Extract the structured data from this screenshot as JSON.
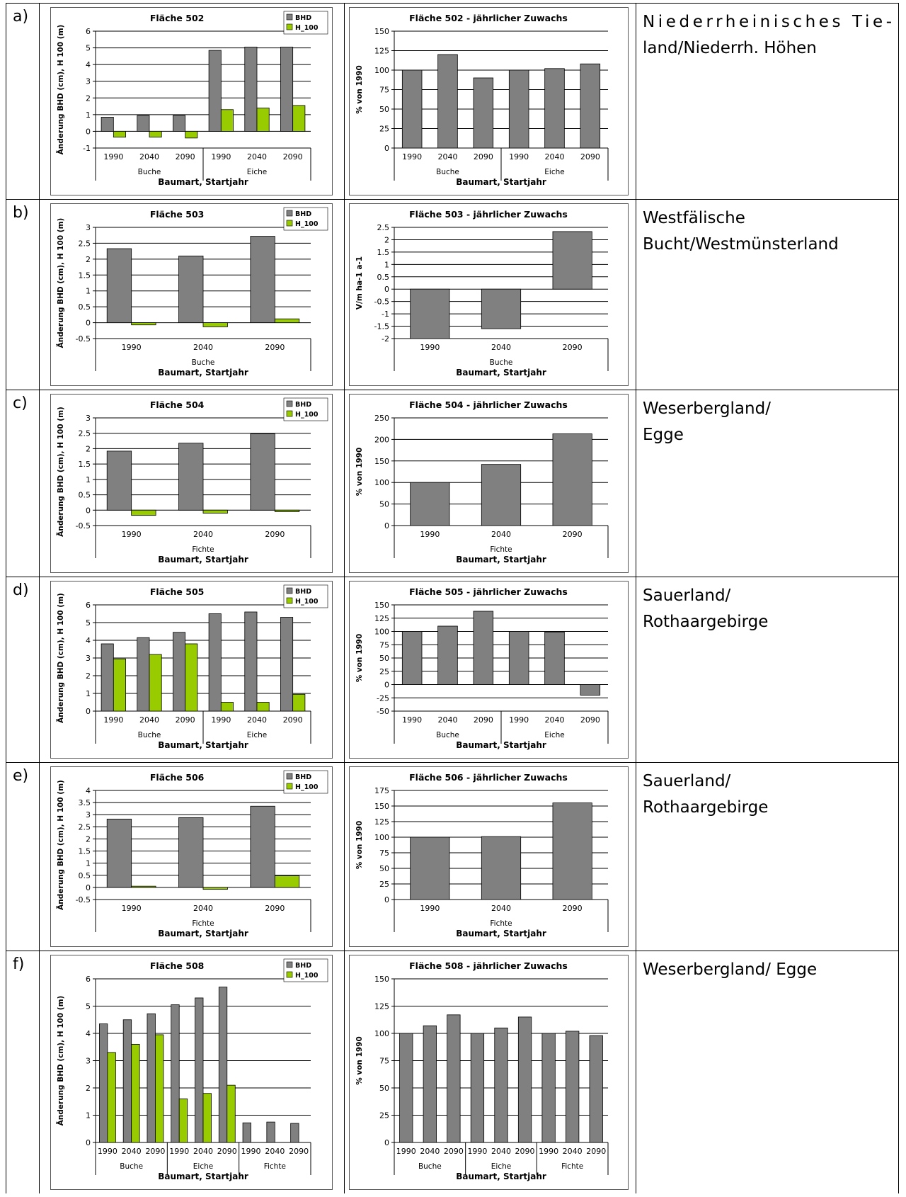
{
  "rows": [
    {
      "label": "a)",
      "region": "Niederrheinisches Tie-land/Niederrh. Höhen",
      "region_lines": [
        "Niederrheinisches Tie-",
        "land/Niederrh. Höhen"
      ]
    },
    {
      "label": "b)",
      "region": "Westfälische Bucht/Westmünsterland",
      "region_lines": [
        "Westfälische",
        "Bucht/Westmünsterland"
      ]
    },
    {
      "label": "c)",
      "region": "Weserbergland/ Egge",
      "region_lines": [
        "Weserbergland/",
        "Egge"
      ]
    },
    {
      "label": "d)",
      "region": "Sauerland/ Rothaargebirge",
      "region_lines": [
        "Sauerland/",
        "Rothaargebirge"
      ]
    },
    {
      "label": "e)",
      "region": "Sauerland/ Rothaargebirge",
      "region_lines": [
        "Sauerland/",
        "Rothaargebirge"
      ]
    },
    {
      "label": "f)",
      "region": "Weserbergland/ Egge",
      "region_lines": [
        "Weserbergland/ Egge"
      ]
    }
  ],
  "colors": {
    "bhd": "#808080",
    "h100": "#99cc00",
    "grid": "#000000",
    "frame": "#555555"
  },
  "chart_data": [
    {
      "type": "bar",
      "title": "Fläche 502",
      "ylabel": "Änderung BHD (cm), H 100 (m)",
      "xlabel": "Baumart, Startjahr",
      "ylim": [
        -1,
        6
      ],
      "yticks": [
        "6",
        "5",
        "4",
        "3",
        "2",
        "1",
        "0",
        "-1"
      ],
      "legend": [
        "BHD",
        "H_100"
      ],
      "legend_position": "top-right",
      "categories": [
        "1990",
        "2040",
        "2090",
        "1990",
        "2040",
        "2090"
      ],
      "groups": [
        {
          "name": "Buche",
          "count": 3
        },
        {
          "name": "Eiche",
          "count": 3
        }
      ],
      "series": [
        {
          "name": "BHD",
          "values": [
            0.85,
            0.95,
            0.95,
            4.85,
            5.05,
            5.05
          ]
        },
        {
          "name": "H_100",
          "values": [
            -0.35,
            -0.35,
            -0.4,
            1.3,
            1.4,
            1.55
          ]
        }
      ]
    },
    {
      "type": "bar",
      "title": "Fläche 502 - jährlicher Zuwachs",
      "ylabel": "% von 1990",
      "xlabel": "Baumart, Startjahr",
      "ylim": [
        0,
        150
      ],
      "yticks": [
        "150",
        "125",
        "100",
        "75",
        "50",
        "25",
        "0"
      ],
      "categories": [
        "1990",
        "2040",
        "2090",
        "1990",
        "2040",
        "2090"
      ],
      "groups": [
        {
          "name": "Buche",
          "count": 3
        },
        {
          "name": "Eiche",
          "count": 3
        }
      ],
      "series": [
        {
          "values": [
            100,
            120,
            90,
            100,
            102,
            108
          ]
        }
      ]
    },
    {
      "type": "bar",
      "title": "Fläche 503",
      "ylabel": "Änderung BHD (cm), H 100 (m)",
      "xlabel": "Baumart, Startjahr",
      "ylim": [
        -0.5,
        3
      ],
      "yticks": [
        "3",
        "2.5",
        "2",
        "1.5",
        "1",
        "0.5",
        "0",
        "-0.5"
      ],
      "legend": [
        "BHD",
        "H_100"
      ],
      "legend_position": "top-right",
      "categories": [
        "1990",
        "2040",
        "2090"
      ],
      "groups": [
        {
          "name": "Buche",
          "count": 3
        }
      ],
      "series": [
        {
          "name": "BHD",
          "values": [
            2.33,
            2.1,
            2.72
          ]
        },
        {
          "name": "H_100",
          "values": [
            -0.07,
            -0.13,
            0.12
          ]
        }
      ]
    },
    {
      "type": "bar",
      "title": "Fläche 503 - jährlicher Zuwachs",
      "ylabel": "V/m ha-1 a-1",
      "xlabel": "Baumart, Startjahr",
      "ylim": [
        -2,
        2.5
      ],
      "yticks": [
        "2.5",
        "2",
        "1.5",
        "1",
        "0.5",
        "0",
        "-0.5",
        "-1",
        "-1.5",
        "-2"
      ],
      "categories": [
        "1990",
        "2040",
        "2090"
      ],
      "groups": [
        {
          "name": "Buche",
          "count": 3
        }
      ],
      "series": [
        {
          "values": [
            -2.0,
            -1.6,
            2.33
          ]
        }
      ]
    },
    {
      "type": "bar",
      "title": "Fläche 504",
      "ylabel": "Änderung BHD (cm), H 100 (m)",
      "xlabel": "Baumart, Startjahr",
      "ylim": [
        -0.5,
        3
      ],
      "yticks": [
        "3",
        "2.5",
        "2",
        "1.5",
        "1",
        "0.5",
        "0",
        "-0.5"
      ],
      "legend": [
        "BHD",
        "H_100"
      ],
      "legend_position": "top-right",
      "categories": [
        "1990",
        "2040",
        "2090"
      ],
      "groups": [
        {
          "name": "Fichte",
          "count": 3
        }
      ],
      "series": [
        {
          "name": "BHD",
          "values": [
            1.92,
            2.18,
            2.48
          ]
        },
        {
          "name": "H_100",
          "values": [
            -0.17,
            -0.1,
            -0.05
          ]
        }
      ]
    },
    {
      "type": "bar",
      "title": "Fläche 504 - jährlicher Zuwachs",
      "ylabel": "% von 1990",
      "xlabel": "Baumart, Startjahr",
      "ylim": [
        0,
        250
      ],
      "yticks": [
        "250",
        "200",
        "150",
        "100",
        "50",
        "0"
      ],
      "categories": [
        "1990",
        "2040",
        "2090"
      ],
      "groups": [
        {
          "name": "Fichte",
          "count": 3
        }
      ],
      "series": [
        {
          "values": [
            100,
            142,
            213
          ]
        }
      ]
    },
    {
      "type": "bar",
      "title": "Fläche 505",
      "ylabel": "Änderung BHD (cm), H 100 (m)",
      "xlabel": "Baumart, Startjahr",
      "ylim": [
        0,
        6
      ],
      "yticks": [
        "6",
        "5",
        "4",
        "3",
        "2",
        "1",
        "0"
      ],
      "legend": [
        "BHD",
        "H_100"
      ],
      "legend_position": "top-right",
      "categories": [
        "1990",
        "2040",
        "2090",
        "1990",
        "2040",
        "2090"
      ],
      "groups": [
        {
          "name": "Buche",
          "count": 3
        },
        {
          "name": "Eiche",
          "count": 3
        }
      ],
      "series": [
        {
          "name": "BHD",
          "values": [
            3.8,
            4.15,
            4.45,
            5.5,
            5.6,
            5.3
          ]
        },
        {
          "name": "H_100",
          "values": [
            2.95,
            3.2,
            3.8,
            0.5,
            0.5,
            0.95
          ]
        }
      ]
    },
    {
      "type": "bar",
      "title": "Fläche 505 - jährlicher Zuwachs",
      "ylabel": "% von 1990",
      "xlabel": "Baumart, Startjahr",
      "ylim": [
        -50,
        150
      ],
      "yticks": [
        "150",
        "125",
        "100",
        "75",
        "50",
        "25",
        "0",
        "-25",
        "-50"
      ],
      "categories": [
        "1990",
        "2040",
        "2090",
        "1990",
        "2040",
        "2090"
      ],
      "groups": [
        {
          "name": "Buche",
          "count": 3
        },
        {
          "name": "Eiche",
          "count": 3
        }
      ],
      "series": [
        {
          "values": [
            100,
            110,
            138,
            100,
            99,
            -20
          ]
        }
      ]
    },
    {
      "type": "bar",
      "title": "Fläche 506",
      "ylabel": "Änderung BHD (cm), H 100 (m)",
      "xlabel": "Baumart, Startjahr",
      "ylim": [
        -0.5,
        4
      ],
      "yticks": [
        "4",
        "3.5",
        "3",
        "2.5",
        "2",
        "1.5",
        "1",
        "0.5",
        "0",
        "-0.5"
      ],
      "legend": [
        "BHD",
        "H_100"
      ],
      "legend_position": "top-right",
      "categories": [
        "1990",
        "2040",
        "2090"
      ],
      "groups": [
        {
          "name": "Fichte",
          "count": 3
        }
      ],
      "series": [
        {
          "name": "BHD",
          "values": [
            2.82,
            2.88,
            3.35
          ]
        },
        {
          "name": "H_100",
          "values": [
            0.05,
            -0.08,
            0.48
          ]
        }
      ]
    },
    {
      "type": "bar",
      "title": "Fläche 506 - jährlicher Zuwachs",
      "ylabel": "% von 1990",
      "xlabel": "Baumart, Startjahr",
      "ylim": [
        0,
        175
      ],
      "yticks": [
        "175",
        "150",
        "125",
        "100",
        "75",
        "50",
        "25",
        "0"
      ],
      "categories": [
        "1990",
        "2040",
        "2090"
      ],
      "groups": [
        {
          "name": "Fichte",
          "count": 3
        }
      ],
      "series": [
        {
          "values": [
            100,
            101,
            155
          ]
        }
      ]
    },
    {
      "type": "bar",
      "title": "Fläche 508",
      "ylabel": "Änderung BHD (cm), H 100 (m)",
      "xlabel": "Baumart, Startjahr",
      "ylim": [
        0,
        6
      ],
      "yticks": [
        "6",
        "5",
        "4",
        "3",
        "2",
        "1",
        "0"
      ],
      "legend": [
        "BHD",
        "H_100"
      ],
      "legend_position": "top-right",
      "categories": [
        "1990",
        "2040",
        "2090",
        "1990",
        "2040",
        "2090",
        "1990",
        "2040",
        "2090"
      ],
      "groups": [
        {
          "name": "Buche",
          "count": 3
        },
        {
          "name": "Eiche",
          "count": 3
        },
        {
          "name": "Fichte",
          "count": 3
        }
      ],
      "series": [
        {
          "name": "BHD",
          "values": [
            4.35,
            4.5,
            4.72,
            5.05,
            5.3,
            5.7,
            0.72,
            0.75,
            0.7
          ]
        },
        {
          "name": "H_100",
          "values": [
            3.3,
            3.6,
            3.95,
            1.6,
            1.8,
            2.1,
            0,
            0,
            0
          ]
        }
      ]
    },
    {
      "type": "bar",
      "title": "Fläche 508 - jährlicher Zuwachs",
      "ylabel": "% von 1990",
      "xlabel": "Baumart, Startjahr",
      "ylim": [
        0,
        150
      ],
      "yticks": [
        "150",
        "125",
        "100",
        "75",
        "50",
        "25",
        "0"
      ],
      "categories": [
        "1990",
        "2040",
        "2090",
        "1990",
        "2040",
        "2090",
        "1990",
        "2040",
        "2090"
      ],
      "groups": [
        {
          "name": "Buche",
          "count": 3
        },
        {
          "name": "Eiche",
          "count": 3
        },
        {
          "name": "Fichte",
          "count": 3
        }
      ],
      "series": [
        {
          "values": [
            100,
            107,
            117,
            100,
            105,
            115,
            100,
            102,
            98
          ]
        }
      ]
    }
  ]
}
